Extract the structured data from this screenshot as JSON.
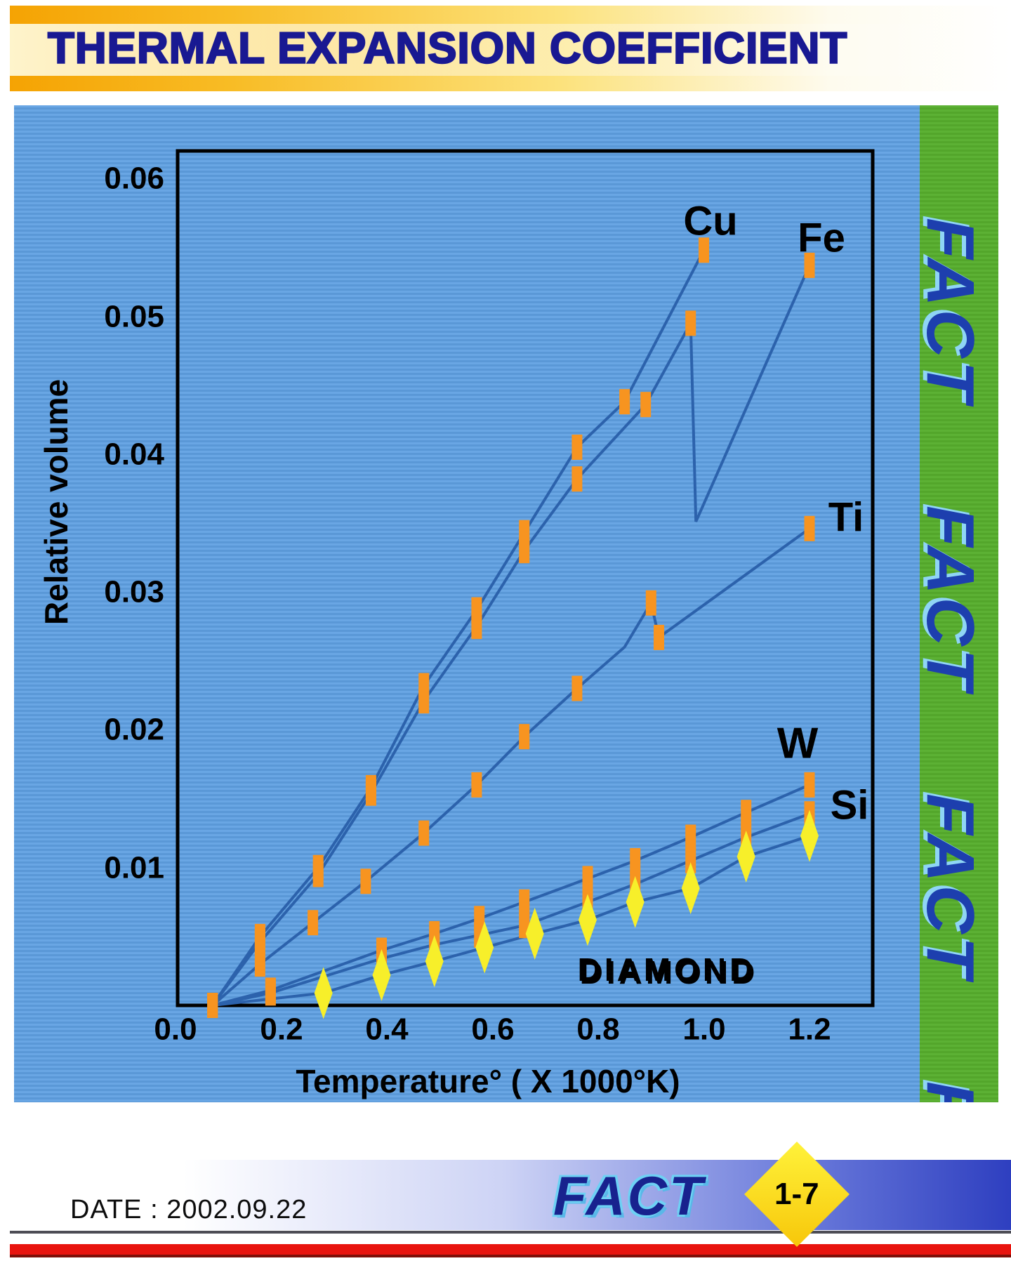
{
  "slide": {
    "title": "THERMAL EXPANSION COEFFICIENT",
    "side_strip": {
      "text": "FACT",
      "repeats": 4
    },
    "footer": {
      "date": "DATE : 2002.09.22",
      "logo": "FACT",
      "page": "1-7"
    }
  },
  "colors": {
    "banner_orange": "#f5a303",
    "title_navy": "#191992",
    "panel_blue": "#61a0dd",
    "strip_green": "#57ab2e",
    "line_blue": "#2c62ac",
    "marker_orange": "#f79420",
    "marker_yellow": "#f7ef2a",
    "diamond_label_yellow": "#ecd920",
    "red_band": "#e8140e"
  },
  "chart_data": {
    "type": "line",
    "title": "",
    "xlabel": "Temperature° ( X 1000°K)",
    "ylabel": "Relative volume",
    "x_ticks": [
      "0.0",
      "0.2",
      "0.4",
      "0.6",
      "0.8",
      "1.0",
      "1.2"
    ],
    "y_ticks": [
      "0.01",
      "0.02",
      "0.03",
      "0.04",
      "0.05",
      "0.06"
    ],
    "xlim": [
      0,
      1.32
    ],
    "ylim": [
      0,
      0.062
    ],
    "grid": false,
    "legend": "inline-labels",
    "line_color": "#2c62ac",
    "series": [
      {
        "name": "Cu",
        "marker": "square",
        "marker_color": "#f79420",
        "label": {
          "text": "Cu",
          "t": 1.013,
          "v": 0.0569,
          "size": 58
        },
        "marker_skip": [],
        "points": [
          [
            0.07,
            0
          ],
          [
            0.16,
            0.005
          ],
          [
            0.27,
            0.01
          ],
          [
            0.37,
            0.0158
          ],
          [
            0.47,
            0.0232
          ],
          [
            0.57,
            0.0287
          ],
          [
            0.66,
            0.0343
          ],
          [
            0.76,
            0.0405
          ],
          [
            0.85,
            0.0438
          ],
          [
            1.0,
            0.0548
          ]
        ]
      },
      {
        "name": "Fe",
        "marker": "square",
        "marker_color": "#f79420",
        "label": {
          "text": "Fe",
          "t": 1.223,
          "v": 0.0557,
          "size": 58
        },
        "marker_skip": [
          10
        ],
        "points": [
          [
            0.07,
            0
          ],
          [
            0.16,
            0.0046
          ],
          [
            0.27,
            0.0095
          ],
          [
            0.37,
            0.0154
          ],
          [
            0.47,
            0.0221
          ],
          [
            0.57,
            0.0275
          ],
          [
            0.66,
            0.033
          ],
          [
            0.76,
            0.0382
          ],
          [
            0.89,
            0.0436
          ],
          [
            0.975,
            0.0495
          ],
          [
            0.985,
            0.0351
          ],
          [
            1.2,
            0.0537
          ]
        ]
      },
      {
        "name": "Ti",
        "marker": "square",
        "marker_color": "#f79420",
        "label": {
          "text": "Ti",
          "t": 1.269,
          "v": 0.0354,
          "size": 58
        },
        "marker_skip": [
          8
        ],
        "points": [
          [
            0.07,
            0
          ],
          [
            0.16,
            0.003
          ],
          [
            0.26,
            0.006
          ],
          [
            0.36,
            0.009
          ],
          [
            0.47,
            0.0125
          ],
          [
            0.57,
            0.016
          ],
          [
            0.66,
            0.0195
          ],
          [
            0.76,
            0.023
          ],
          [
            0.85,
            0.026
          ],
          [
            0.9,
            0.0292
          ],
          [
            0.915,
            0.0267
          ],
          [
            1.2,
            0.0346
          ]
        ]
      },
      {
        "name": "W",
        "marker": "square",
        "marker_color": "#f79420",
        "label": {
          "text": "W",
          "t": 1.178,
          "v": 0.019,
          "size": 62
        },
        "marker_skip": [
          0
        ],
        "points": [
          [
            0.07,
            0
          ],
          [
            0.18,
            0.0011
          ],
          [
            0.39,
            0.004
          ],
          [
            0.49,
            0.0052
          ],
          [
            0.575,
            0.0063
          ],
          [
            0.66,
            0.0075
          ],
          [
            0.78,
            0.0092
          ],
          [
            0.87,
            0.0105
          ],
          [
            0.975,
            0.0122
          ],
          [
            1.08,
            0.014
          ],
          [
            1.2,
            0.016
          ]
        ]
      },
      {
        "name": "Si",
        "marker": "square",
        "marker_color": "#f79420",
        "label": {
          "text": "Si",
          "t": 1.276,
          "v": 0.0145,
          "size": 58
        },
        "marker_skip": [
          0
        ],
        "points": [
          [
            0.07,
            0
          ],
          [
            0.18,
            0.0009
          ],
          [
            0.39,
            0.0034
          ],
          [
            0.49,
            0.0044
          ],
          [
            0.575,
            0.0051
          ],
          [
            0.66,
            0.0058
          ],
          [
            0.78,
            0.0075
          ],
          [
            0.87,
            0.0088
          ],
          [
            0.975,
            0.0105
          ],
          [
            1.08,
            0.0122
          ],
          [
            1.2,
            0.0139
          ]
        ]
      },
      {
        "name": "DIAMOND",
        "marker": "diamond",
        "marker_color": "#f7ef2a",
        "label": {
          "text": "DIAMOND",
          "t": 0.93,
          "v": 0.0026,
          "size": 46,
          "color": "#ecd920",
          "shadow": "#8a6e10",
          "spacing": 5
        },
        "marker_skip": [
          0
        ],
        "points": [
          [
            0.07,
            0
          ],
          [
            0.28,
            0.0009
          ],
          [
            0.39,
            0.0022
          ],
          [
            0.49,
            0.0032
          ],
          [
            0.585,
            0.0042
          ],
          [
            0.68,
            0.0052
          ],
          [
            0.78,
            0.0062
          ],
          [
            0.87,
            0.0075
          ],
          [
            0.975,
            0.0085
          ],
          [
            1.08,
            0.0108
          ],
          [
            1.2,
            0.0123
          ]
        ]
      }
    ]
  }
}
